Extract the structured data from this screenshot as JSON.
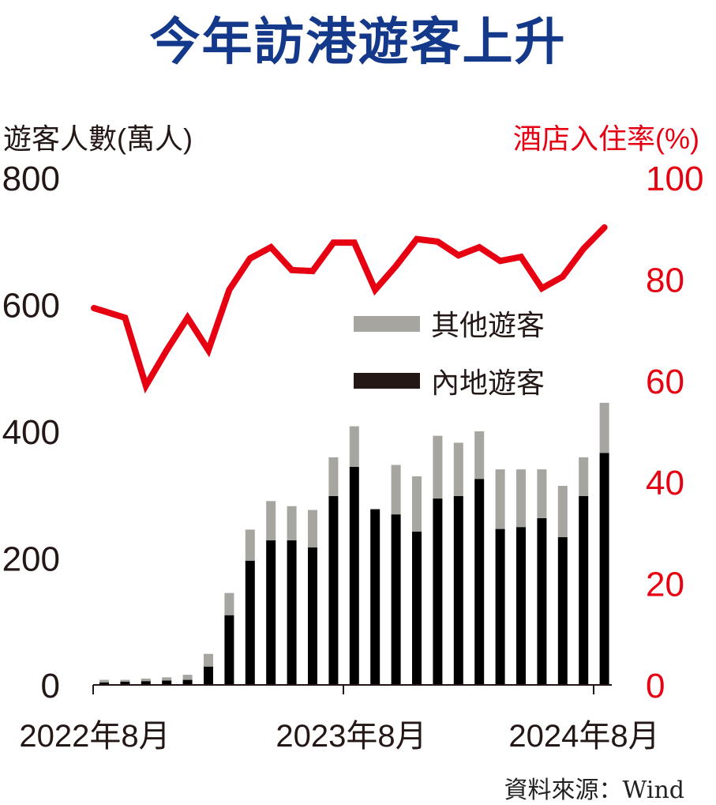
{
  "title": "今年訪港遊客上升",
  "source": "資料來源：Wind",
  "colors": {
    "mainland": "#000000",
    "others": "#a6a5a0",
    "hotel": "#e60012",
    "title": "#15398a"
  },
  "chart_data": {
    "type": "bar",
    "title": "今年訪港遊客上升",
    "ylabel": "遊客人數(萬人)",
    "y2label": "酒店入住率(%)",
    "ylim": [
      0,
      800
    ],
    "y2lim": [
      0,
      100
    ],
    "yticks": [
      "0",
      "200",
      "400",
      "600",
      "800"
    ],
    "y2ticks": [
      "0",
      "20",
      "40",
      "60",
      "80",
      "100"
    ],
    "xtick_labels": [
      "2022年8月",
      "2023年8月",
      "2024年8月"
    ],
    "categories": [
      "2022-08",
      "2022-09",
      "2022-10",
      "2022-11",
      "2022-12",
      "2023-01",
      "2023-02",
      "2023-03",
      "2023-04",
      "2023-05",
      "2023-06",
      "2023-07",
      "2023-08",
      "2023-09",
      "2023-10",
      "2023-11",
      "2023-12",
      "2024-01",
      "2024-02",
      "2024-03",
      "2024-04",
      "2024-05",
      "2024-06",
      "2024-07",
      "2024-08"
    ],
    "legend": [
      "其他遊客",
      "內地遊客"
    ],
    "legend_position": "center-right",
    "series": [
      {
        "name": "內地遊客",
        "type": "bar",
        "stack": "visitors",
        "values": [
          4,
          5,
          6,
          7,
          8,
          29,
          110,
          196,
          228,
          228,
          217,
          298,
          344,
          277,
          269,
          242,
          294,
          298,
          325,
          246,
          249,
          263,
          233,
          298,
          366
        ]
      },
      {
        "name": "其他遊客",
        "type": "bar",
        "stack": "visitors",
        "values": [
          4,
          3,
          4,
          5,
          8,
          20,
          35,
          49,
          62,
          54,
          59,
          61,
          64,
          1,
          78,
          87,
          99,
          84,
          75,
          94,
          91,
          77,
          81,
          61,
          79
        ]
      },
      {
        "name": "酒店入住率",
        "type": "line",
        "axis": "right",
        "values": [
          74.3,
          72.4,
          59,
          66,
          72.4,
          66,
          77.9,
          84.1,
          86.3,
          81.8,
          81.6,
          87.2,
          87.2,
          77.9,
          82.6,
          87.9,
          87.4,
          84.7,
          86.3,
          83.6,
          84.4,
          78.2,
          80.5,
          86,
          90.2
        ]
      }
    ]
  }
}
